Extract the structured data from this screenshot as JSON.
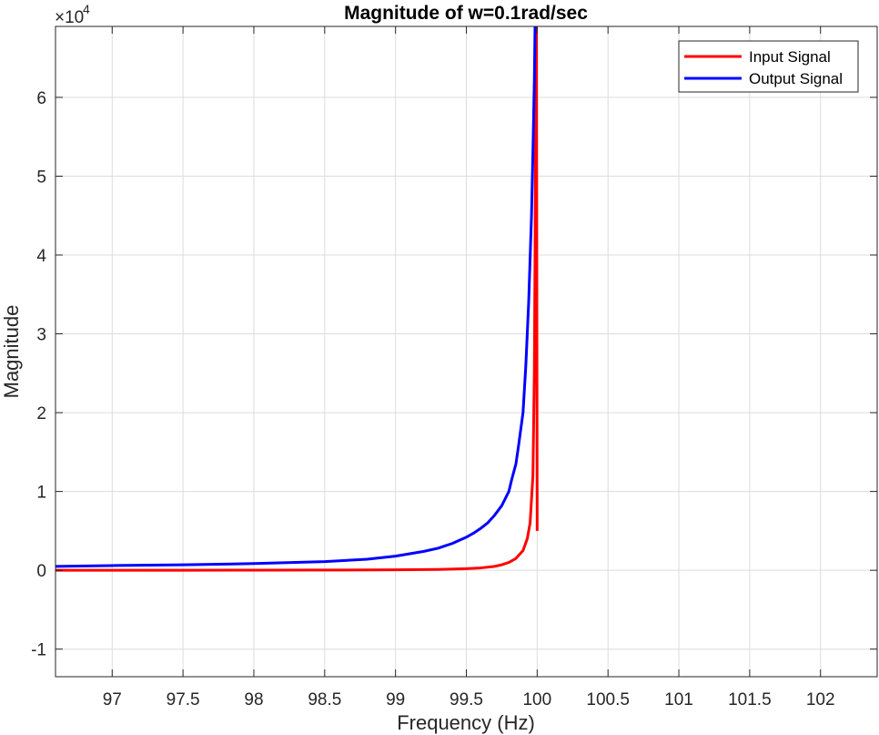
{
  "chart_data": {
    "type": "line",
    "title": "Magnitude of w=0.1rad/sec",
    "xlabel": "Frequency (Hz)",
    "ylabel": "Magnitude",
    "xlim": [
      96.6,
      102.4
    ],
    "ylim": [
      -13500,
      69000
    ],
    "y_exponent_prefix": "×10",
    "y_exponent_power": "4",
    "xticks": [
      97,
      97.5,
      98,
      98.5,
      99,
      99.5,
      100,
      100.5,
      101,
      101.5,
      102
    ],
    "xtick_labels": [
      "97",
      "97.5",
      "98",
      "98.5",
      "99",
      "99.5",
      "100",
      "100.5",
      "101",
      "101.5",
      "102"
    ],
    "yticks": [
      -10000,
      0,
      10000,
      20000,
      30000,
      40000,
      50000,
      60000
    ],
    "ytick_labels": [
      "-1",
      "0",
      "1",
      "2",
      "3",
      "4",
      "5",
      "6"
    ],
    "grid": true,
    "legend_position": "top-right",
    "series": [
      {
        "name": "Input Signal",
        "color": "#ff0000",
        "x": [
          96.6,
          97.0,
          97.5,
          98.0,
          98.5,
          99.0,
          99.3,
          99.5,
          99.6,
          99.7,
          99.75,
          99.8,
          99.85,
          99.9,
          99.93,
          99.95,
          99.97,
          99.98,
          99.985,
          99.99,
          99.995,
          100.0
        ],
        "y": [
          0,
          5,
          10,
          20,
          30,
          60,
          100,
          200,
          300,
          500,
          700,
          1000,
          1500,
          2500,
          4000,
          6000,
          12000,
          25000,
          40000,
          60000,
          69000,
          5000
        ]
      },
      {
        "name": "Output Signal",
        "color": "#0000ff",
        "x": [
          96.6,
          97.0,
          97.5,
          98.0,
          98.5,
          98.8,
          99.0,
          99.1,
          99.2,
          99.3,
          99.35,
          99.4,
          99.45,
          99.5,
          99.55,
          99.6,
          99.65,
          99.7,
          99.75,
          99.8,
          99.82,
          99.85,
          99.87,
          99.9,
          99.92,
          99.94,
          99.96,
          99.97,
          99.98,
          99.985,
          100.0
        ],
        "y": [
          500,
          600,
          700,
          850,
          1100,
          1400,
          1800,
          2100,
          2400,
          2800,
          3100,
          3400,
          3800,
          4200,
          4700,
          5300,
          6000,
          7000,
          8200,
          10000,
          11500,
          13500,
          16000,
          20000,
          26000,
          34000,
          45000,
          53000,
          62000,
          69000,
          69000
        ]
      }
    ]
  }
}
